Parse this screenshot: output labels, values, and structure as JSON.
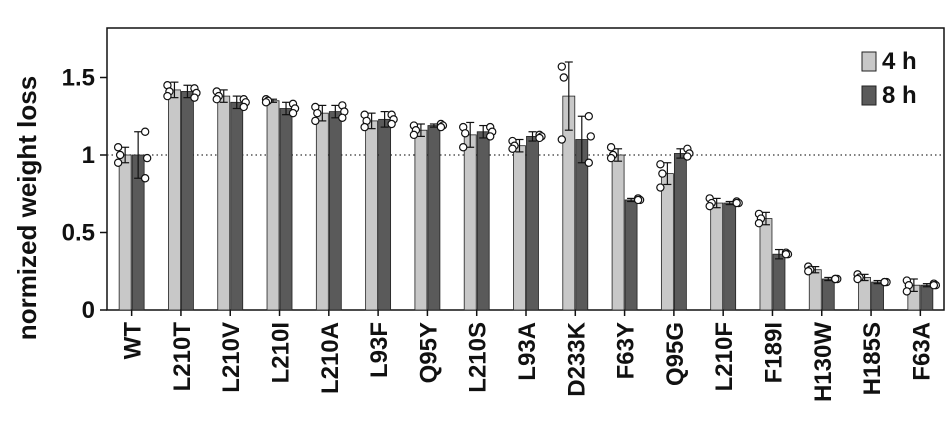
{
  "chart_data": {
    "type": "bar",
    "title": "",
    "xlabel": "",
    "ylabel": "normized weight loss",
    "ylim": [
      0,
      1.8
    ],
    "yticks": [
      0,
      0.5,
      1,
      1.5
    ],
    "ytick_labels": [
      "0",
      "0.5",
      "1",
      "1.5"
    ],
    "reference_line": 1,
    "legend_position": "top-right",
    "categories": [
      "WT",
      "L210T",
      "L210V",
      "L210I",
      "L210A",
      "L93F",
      "Q95Y",
      "L210S",
      "L93A",
      "D233K",
      "F63Y",
      "Q95G",
      "L210F",
      "F189I",
      "H130W",
      "H185S",
      "F63A"
    ],
    "series": [
      {
        "name": "4 h",
        "color": "#c8c8c8",
        "values": [
          1.0,
          1.42,
          1.38,
          1.35,
          1.27,
          1.22,
          1.16,
          1.13,
          1.06,
          1.38,
          1.0,
          0.88,
          0.69,
          0.59,
          0.26,
          0.21,
          0.16
        ],
        "errors": [
          0.05,
          0.05,
          0.04,
          0.01,
          0.05,
          0.05,
          0.04,
          0.08,
          0.04,
          0.22,
          0.04,
          0.07,
          0.03,
          0.04,
          0.02,
          0.02,
          0.04
        ],
        "points": [
          [
            1.05,
            1.0,
            0.95
          ],
          [
            1.45,
            1.41,
            1.38
          ],
          [
            1.41,
            1.38,
            1.36
          ],
          [
            1.36,
            1.35,
            1.34
          ],
          [
            1.31,
            1.27,
            1.22
          ],
          [
            1.26,
            1.22,
            1.18
          ],
          [
            1.19,
            1.16,
            1.13
          ],
          [
            1.18,
            1.14,
            1.05
          ],
          [
            1.09,
            1.06,
            1.04
          ],
          [
            1.57,
            1.5,
            1.1
          ],
          [
            1.05,
            1.0,
            0.98
          ],
          [
            0.94,
            0.88,
            0.79
          ],
          [
            0.72,
            0.69,
            0.67
          ],
          [
            0.62,
            0.59,
            0.56
          ],
          [
            0.28,
            0.26,
            0.25
          ],
          [
            0.23,
            0.21,
            0.2
          ],
          [
            0.19,
            0.16,
            0.12
          ]
        ]
      },
      {
        "name": "8 h",
        "color": "#5a5a5a",
        "values": [
          1.0,
          1.41,
          1.34,
          1.3,
          1.28,
          1.23,
          1.19,
          1.15,
          1.12,
          1.1,
          0.71,
          1.01,
          0.69,
          0.36,
          0.2,
          0.18,
          0.16
        ],
        "errors": [
          0.15,
          0.04,
          0.04,
          0.04,
          0.04,
          0.05,
          0.01,
          0.04,
          0.03,
          0.15,
          0.01,
          0.03,
          0.01,
          0.03,
          0.01,
          0.01,
          0.01
        ],
        "points": [
          [
            1.15,
            0.98,
            0.85
          ],
          [
            1.43,
            1.4,
            1.37
          ],
          [
            1.36,
            1.34,
            1.31
          ],
          [
            1.33,
            1.3,
            1.27
          ],
          [
            1.32,
            1.28,
            1.24
          ],
          [
            1.26,
            1.23,
            1.2
          ],
          [
            1.2,
            1.19,
            1.18
          ],
          [
            1.18,
            1.15,
            1.12
          ],
          [
            1.13,
            1.12,
            1.11
          ],
          [
            1.25,
            1.12,
            0.95
          ],
          [
            0.72,
            0.71,
            0.71
          ],
          [
            1.04,
            1.01,
            0.99
          ],
          [
            0.7,
            0.69,
            0.69
          ],
          [
            0.37,
            0.36,
            0.36
          ],
          [
            0.2,
            0.2,
            0.2
          ],
          [
            0.18,
            0.18,
            0.18
          ],
          [
            0.17,
            0.16,
            0.16
          ]
        ]
      }
    ]
  }
}
